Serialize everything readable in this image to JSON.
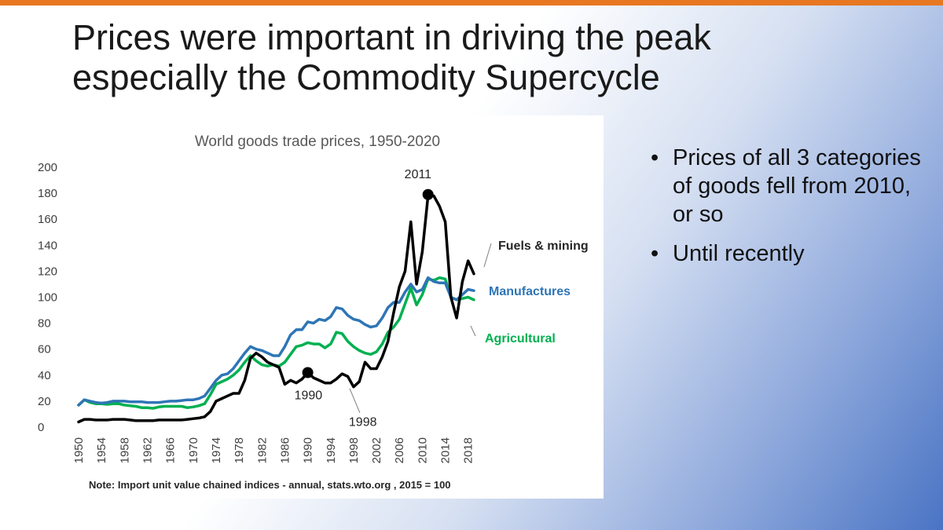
{
  "slide": {
    "title_line1": "Prices were important in driving the peak",
    "title_line2": "especially the Commodity Supercycle",
    "accent_color": "#e87722"
  },
  "bullets": [
    "Prices of all 3 categories of goods fell from 2010, or so",
    "Until recently"
  ],
  "chart_data": {
    "type": "line",
    "title": "World goods trade prices, 1950-2020",
    "note": "Note: Import unit value chained indices - annual, stats.wto.org , 2015 = 100",
    "xlabel": "",
    "ylabel": "",
    "ylim": [
      0,
      200
    ],
    "xlim": [
      1950,
      2019
    ],
    "y_ticks": [
      0,
      20,
      40,
      60,
      80,
      100,
      120,
      140,
      160,
      180,
      200
    ],
    "x_ticks": [
      1950,
      1954,
      1958,
      1962,
      1966,
      1970,
      1974,
      1978,
      1982,
      1986,
      1990,
      1994,
      1998,
      2002,
      2006,
      2010,
      2014,
      2018
    ],
    "x": [
      1950,
      1951,
      1952,
      1953,
      1954,
      1955,
      1956,
      1957,
      1958,
      1959,
      1960,
      1961,
      1962,
      1963,
      1964,
      1965,
      1966,
      1967,
      1968,
      1969,
      1970,
      1971,
      1972,
      1973,
      1974,
      1975,
      1976,
      1977,
      1978,
      1979,
      1980,
      1981,
      1982,
      1983,
      1984,
      1985,
      1986,
      1987,
      1988,
      1989,
      1990,
      1991,
      1992,
      1993,
      1994,
      1995,
      1996,
      1997,
      1998,
      1999,
      2000,
      2001,
      2002,
      2003,
      2004,
      2005,
      2006,
      2007,
      2008,
      2009,
      2010,
      2011,
      2012,
      2013,
      2014,
      2015,
      2016,
      2017,
      2018,
      2019
    ],
    "series": [
      {
        "name": "Fuels & mining",
        "color": "#000000",
        "values": [
          4,
          6,
          6,
          5.5,
          5.5,
          5.5,
          6,
          6,
          6,
          5.5,
          5,
          5,
          5,
          5,
          5.5,
          5.5,
          5.5,
          5.5,
          5.5,
          6,
          6.5,
          7,
          8,
          12,
          20,
          22,
          24,
          26,
          26,
          36,
          53,
          57,
          54,
          50,
          48,
          46,
          33,
          36,
          34,
          37,
          42,
          38,
          36,
          34,
          34,
          37,
          41,
          39,
          31,
          35,
          50,
          45,
          45,
          54,
          66,
          88,
          108,
          120,
          158,
          110,
          135,
          178,
          178,
          170,
          158,
          100,
          84,
          112,
          128,
          118
        ]
      },
      {
        "name": "Manufactures",
        "color": "#2e75b6",
        "values": [
          17,
          21,
          20,
          19,
          18.5,
          19,
          20,
          20,
          20,
          19.5,
          19.5,
          19.5,
          19,
          19,
          19,
          19.5,
          20,
          20,
          20.5,
          21,
          21,
          22,
          24,
          30,
          36,
          40,
          41,
          45,
          51,
          57,
          62,
          60,
          59,
          57,
          55,
          55,
          62,
          71,
          75,
          75,
          81,
          80,
          83,
          82,
          85,
          92,
          91,
          86,
          83,
          82,
          79,
          77,
          78,
          84,
          92,
          96,
          96,
          104,
          110,
          104,
          106,
          115,
          112,
          111,
          111,
          100,
          98,
          102,
          106,
          105
        ]
      },
      {
        "name": "Agricultural",
        "color": "#00b050",
        "values": [
          17,
          21,
          19,
          18,
          18,
          17.5,
          18,
          18,
          17,
          16.5,
          16,
          15,
          15,
          14.5,
          15.5,
          16,
          16,
          16,
          16,
          15,
          15.5,
          16.5,
          18,
          25,
          33,
          35,
          37,
          40,
          44,
          50,
          55,
          51,
          48,
          47,
          48,
          47,
          50,
          56,
          62,
          63,
          65,
          64,
          64,
          61,
          64,
          73,
          72,
          66,
          62,
          59,
          57,
          56,
          58,
          64,
          73,
          77,
          83,
          95,
          107,
          94,
          102,
          114,
          113,
          115,
          114,
          100,
          98,
          99,
          100,
          98
        ]
      }
    ],
    "annotations": [
      {
        "label": "2011",
        "x": 2011,
        "y": 179,
        "marker": true
      },
      {
        "label": "1990",
        "x": 1990,
        "y": 42,
        "marker": true
      },
      {
        "label": "1998",
        "x": 1998,
        "y": 31,
        "marker": false
      }
    ]
  }
}
